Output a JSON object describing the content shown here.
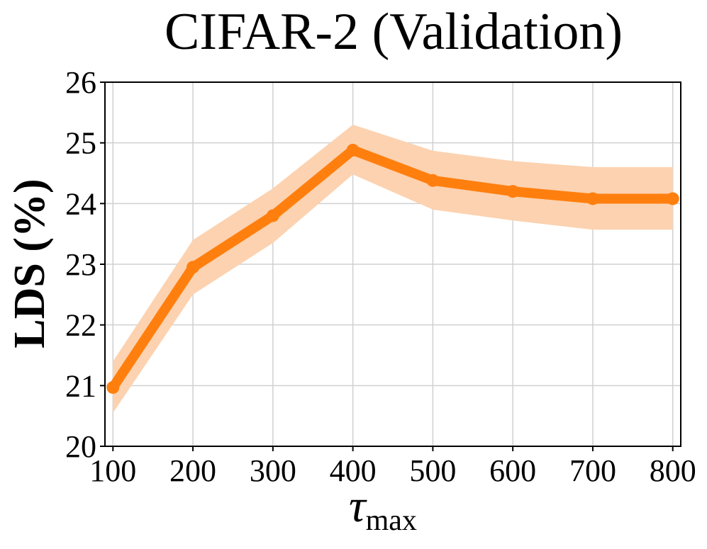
{
  "chart_data": {
    "type": "line",
    "title": "CIFAR-2 (Validation)",
    "xlabel": "τ",
    "xlabel_subscript": "max",
    "ylabel": "LDS (%)",
    "x": [
      100,
      200,
      300,
      400,
      500,
      600,
      700,
      800
    ],
    "xlim": [
      90,
      810
    ],
    "ylim": [
      20,
      26
    ],
    "xticks": [
      "100",
      "200",
      "300",
      "400",
      "500",
      "600",
      "700",
      "800"
    ],
    "yticks": [
      "20",
      "21",
      "22",
      "23",
      "24",
      "25",
      "26"
    ],
    "grid": true,
    "series": [
      {
        "name": "LDS",
        "color": "#ff7f0e",
        "band_color": "#fcd2b0",
        "values": [
          20.97,
          22.95,
          23.8,
          24.88,
          24.38,
          24.2,
          24.08,
          24.08
        ],
        "lower": [
          20.55,
          22.5,
          23.35,
          24.48,
          23.9,
          23.72,
          23.57,
          23.57
        ],
        "upper": [
          21.4,
          23.4,
          24.25,
          25.3,
          24.87,
          24.7,
          24.6,
          24.6
        ]
      }
    ]
  }
}
